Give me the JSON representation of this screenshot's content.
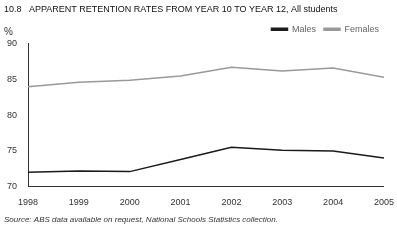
{
  "chart_data": {
    "type": "line",
    "title": "10.8   APPARENT RETENTION RATES FROM YEAR 10 TO YEAR 12, All students",
    "ylabel": "%",
    "annotations": [
      "Source: ABS data available on request, National Schools Statistics collection."
    ],
    "x": [
      1998,
      1999,
      2000,
      2001,
      2002,
      2003,
      2004,
      2005
    ],
    "series": [
      {
        "name": "Males",
        "color": "#1a1a1a",
        "values": [
          72.0,
          72.2,
          72.1,
          73.8,
          75.5,
          75.1,
          75.0,
          74.0
        ]
      },
      {
        "name": "Females",
        "color": "#999999",
        "values": [
          84.0,
          84.6,
          84.9,
          85.5,
          86.7,
          86.2,
          86.6,
          85.3
        ]
      }
    ],
    "xlim": [
      1998,
      2005
    ],
    "xticks": [
      1998,
      1999,
      2000,
      2001,
      2002,
      2003,
      2004,
      2005
    ],
    "ylim": [
      70,
      90
    ],
    "yticks": [
      70,
      75,
      80,
      85,
      90
    ],
    "grid": false,
    "legend": "upper right"
  }
}
